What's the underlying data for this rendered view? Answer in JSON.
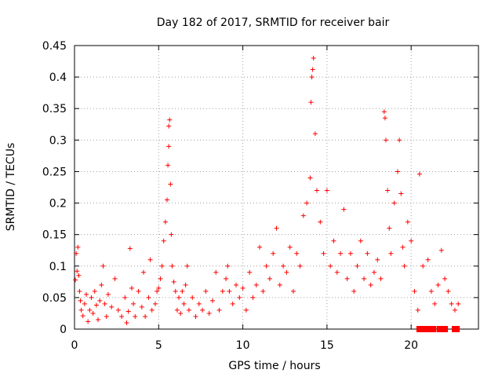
{
  "chart_data": {
    "type": "scatter",
    "title": "Day 182 of 2017, SRMTID for receiver bair",
    "xlabel": "GPS time / hours",
    "ylabel": "SRMTID / TECUs",
    "xlim": [
      0,
      24
    ],
    "ylim": [
      0,
      0.45
    ],
    "x_ticks": [
      {
        "value": 0,
        "label": "0"
      },
      {
        "value": 5,
        "label": "5"
      },
      {
        "value": 10,
        "label": "10"
      },
      {
        "value": 15,
        "label": "15"
      },
      {
        "value": 20,
        "label": "20"
      }
    ],
    "y_ticks": [
      {
        "value": 0,
        "label": "0"
      },
      {
        "value": 0.05,
        "label": "0.05"
      },
      {
        "value": 0.1,
        "label": "0.1"
      },
      {
        "value": 0.15,
        "label": "0.15"
      },
      {
        "value": 0.2,
        "label": "0.2"
      },
      {
        "value": 0.25,
        "label": "0.25"
      },
      {
        "value": 0.3,
        "label": "0.3"
      },
      {
        "value": 0.35,
        "label": "0.35"
      },
      {
        "value": 0.4,
        "label": "0.4"
      },
      {
        "value": 0.45,
        "label": "0.45"
      }
    ],
    "grid": true,
    "legend": "none",
    "color": "#ff0000",
    "series": [
      {
        "marker": "plus",
        "points": [
          [
            0.05,
            0.078
          ],
          [
            0.1,
            0.12
          ],
          [
            0.15,
            0.092
          ],
          [
            0.2,
            0.13
          ],
          [
            0.25,
            0.085
          ],
          [
            0.3,
            0.06
          ],
          [
            0.35,
            0.045
          ],
          [
            0.4,
            0.03
          ],
          [
            0.5,
            0.021
          ],
          [
            0.6,
            0.04
          ],
          [
            0.7,
            0.055
          ],
          [
            0.8,
            0.012
          ],
          [
            0.9,
            0.03
          ],
          [
            1.0,
            0.05
          ],
          [
            1.1,
            0.025
          ],
          [
            1.2,
            0.06
          ],
          [
            1.3,
            0.038
          ],
          [
            1.4,
            0.015
          ],
          [
            1.5,
            0.045
          ],
          [
            1.6,
            0.07
          ],
          [
            1.7,
            0.1
          ],
          [
            1.8,
            0.04
          ],
          [
            1.9,
            0.02
          ],
          [
            2.0,
            0.055
          ],
          [
            2.2,
            0.035
          ],
          [
            2.4,
            0.08
          ],
          [
            2.6,
            0.03
          ],
          [
            2.8,
            0.02
          ],
          [
            3.0,
            0.05
          ],
          [
            3.1,
            0.01
          ],
          [
            3.2,
            0.028
          ],
          [
            3.3,
            0.128
          ],
          [
            3.4,
            0.065
          ],
          [
            3.5,
            0.04
          ],
          [
            3.6,
            0.02
          ],
          [
            3.8,
            0.06
          ],
          [
            4.0,
            0.035
          ],
          [
            4.1,
            0.09
          ],
          [
            4.2,
            0.02
          ],
          [
            4.4,
            0.05
          ],
          [
            4.5,
            0.11
          ],
          [
            4.6,
            0.03
          ],
          [
            4.8,
            0.04
          ],
          [
            4.9,
            0.06
          ],
          [
            5.0,
            0.065
          ],
          [
            5.1,
            0.08
          ],
          [
            5.2,
            0.1
          ],
          [
            5.3,
            0.14
          ],
          [
            5.4,
            0.17
          ],
          [
            5.5,
            0.205
          ],
          [
            5.55,
            0.26
          ],
          [
            5.6,
            0.29
          ],
          [
            5.6,
            0.322
          ],
          [
            5.65,
            0.332
          ],
          [
            5.7,
            0.23
          ],
          [
            5.75,
            0.15
          ],
          [
            5.8,
            0.1
          ],
          [
            5.9,
            0.075
          ],
          [
            6.0,
            0.06
          ],
          [
            6.1,
            0.03
          ],
          [
            6.2,
            0.05
          ],
          [
            6.3,
            0.025
          ],
          [
            6.4,
            0.06
          ],
          [
            6.5,
            0.04
          ],
          [
            6.6,
            0.07
          ],
          [
            6.7,
            0.1
          ],
          [
            6.8,
            0.03
          ],
          [
            7.0,
            0.05
          ],
          [
            7.2,
            0.02
          ],
          [
            7.4,
            0.04
          ],
          [
            7.6,
            0.03
          ],
          [
            7.8,
            0.06
          ],
          [
            8.0,
            0.025
          ],
          [
            8.2,
            0.045
          ],
          [
            8.4,
            0.09
          ],
          [
            8.6,
            0.03
          ],
          [
            8.8,
            0.06
          ],
          [
            9.0,
            0.08
          ],
          [
            9.1,
            0.1
          ],
          [
            9.2,
            0.06
          ],
          [
            9.4,
            0.04
          ],
          [
            9.6,
            0.07
          ],
          [
            9.8,
            0.05
          ],
          [
            10.0,
            0.065
          ],
          [
            10.2,
            0.03
          ],
          [
            10.4,
            0.09
          ],
          [
            10.6,
            0.05
          ],
          [
            10.8,
            0.07
          ],
          [
            11.0,
            0.13
          ],
          [
            11.2,
            0.06
          ],
          [
            11.4,
            0.1
          ],
          [
            11.6,
            0.08
          ],
          [
            11.8,
            0.12
          ],
          [
            12.0,
            0.16
          ],
          [
            12.2,
            0.07
          ],
          [
            12.4,
            0.1
          ],
          [
            12.6,
            0.09
          ],
          [
            12.8,
            0.13
          ],
          [
            13.0,
            0.06
          ],
          [
            13.2,
            0.12
          ],
          [
            13.4,
            0.1
          ],
          [
            13.6,
            0.18
          ],
          [
            13.8,
            0.2
          ],
          [
            14.0,
            0.24
          ],
          [
            14.05,
            0.36
          ],
          [
            14.1,
            0.4
          ],
          [
            14.15,
            0.412
          ],
          [
            14.2,
            0.43
          ],
          [
            14.3,
            0.31
          ],
          [
            14.4,
            0.22
          ],
          [
            14.6,
            0.17
          ],
          [
            14.8,
            0.12
          ],
          [
            15.0,
            0.22
          ],
          [
            15.2,
            0.1
          ],
          [
            15.4,
            0.14
          ],
          [
            15.6,
            0.09
          ],
          [
            15.8,
            0.12
          ],
          [
            16.0,
            0.19
          ],
          [
            16.2,
            0.08
          ],
          [
            16.4,
            0.12
          ],
          [
            16.6,
            0.06
          ],
          [
            16.8,
            0.1
          ],
          [
            17.0,
            0.14
          ],
          [
            17.2,
            0.08
          ],
          [
            17.4,
            0.12
          ],
          [
            17.6,
            0.07
          ],
          [
            17.8,
            0.09
          ],
          [
            18.0,
            0.11
          ],
          [
            18.2,
            0.08
          ],
          [
            18.4,
            0.345
          ],
          [
            18.45,
            0.335
          ],
          [
            18.5,
            0.3
          ],
          [
            18.6,
            0.22
          ],
          [
            18.7,
            0.16
          ],
          [
            18.8,
            0.12
          ],
          [
            19.0,
            0.2
          ],
          [
            19.2,
            0.25
          ],
          [
            19.3,
            0.3
          ],
          [
            19.4,
            0.215
          ],
          [
            19.5,
            0.13
          ],
          [
            19.6,
            0.1
          ],
          [
            19.8,
            0.17
          ],
          [
            20.0,
            0.14
          ],
          [
            20.2,
            0.06
          ],
          [
            20.4,
            0.03
          ],
          [
            20.5,
            0.246
          ],
          [
            20.7,
            0.1
          ],
          [
            21.0,
            0.11
          ],
          [
            21.2,
            0.06
          ],
          [
            21.4,
            0.04
          ],
          [
            21.6,
            0.07
          ],
          [
            21.8,
            0.125
          ],
          [
            22.0,
            0.08
          ],
          [
            22.2,
            0.06
          ],
          [
            22.4,
            0.04
          ],
          [
            22.6,
            0.03
          ],
          [
            22.8,
            0.04
          ]
        ]
      },
      {
        "marker": "square",
        "points": [
          [
            20.5,
            0
          ],
          [
            20.7,
            0
          ],
          [
            20.9,
            0
          ],
          [
            21.1,
            0
          ],
          [
            21.3,
            0
          ],
          [
            21.7,
            0
          ],
          [
            22.0,
            0
          ],
          [
            22.6,
            0
          ],
          [
            22.7,
            0
          ]
        ]
      }
    ]
  }
}
